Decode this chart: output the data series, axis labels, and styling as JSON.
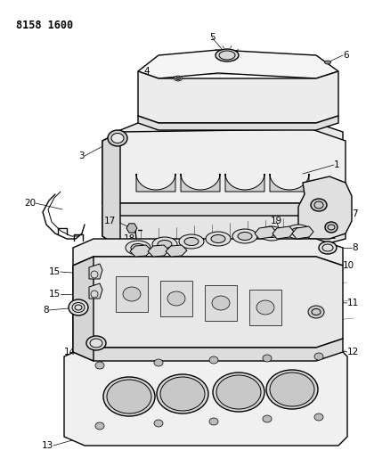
{
  "title": "8158 1600",
  "bg": "#ffffff",
  "lc": "#000000",
  "fig_w": 4.11,
  "fig_h": 5.33,
  "dpi": 100
}
